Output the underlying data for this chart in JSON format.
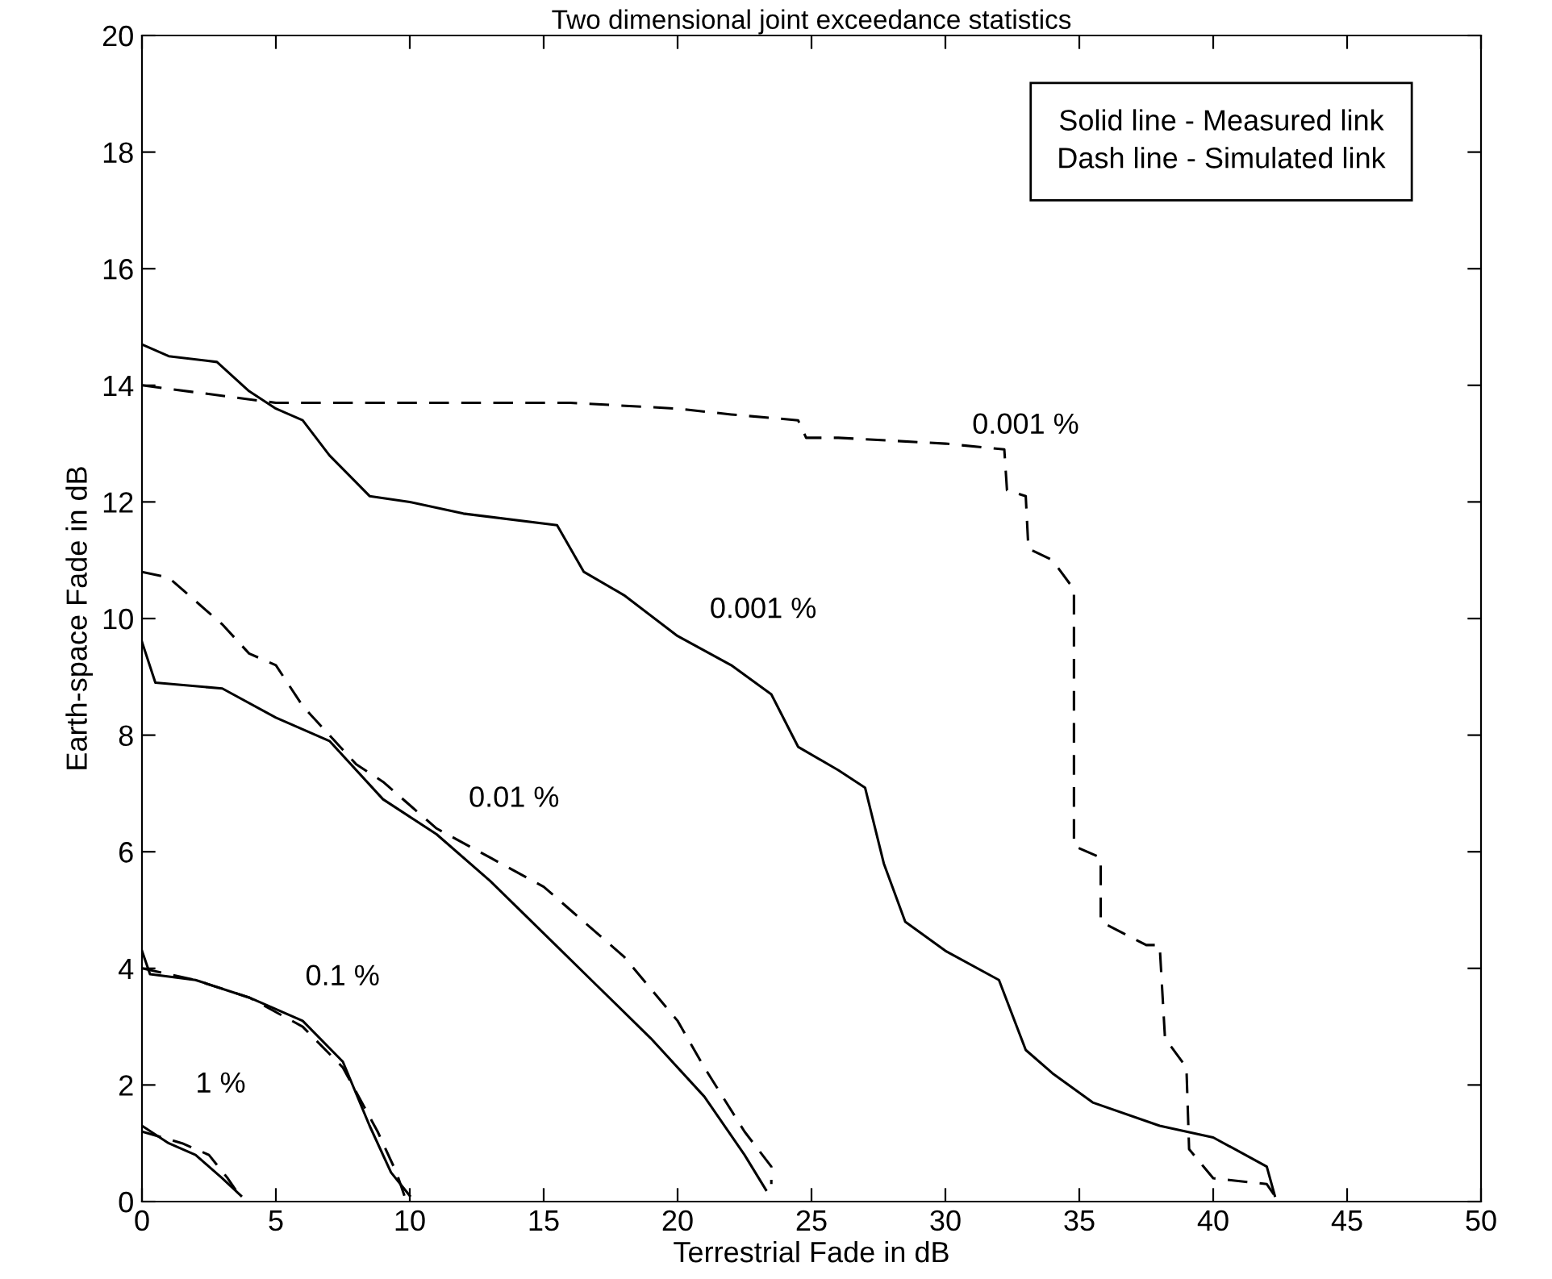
{
  "chart_data": {
    "type": "line",
    "title": "Two dimensional joint exceedance statistics",
    "xlabel": "Terrestrial Fade in dB",
    "ylabel": "Earth-space Fade in dB",
    "xlim": [
      0,
      50
    ],
    "xticks": [
      0,
      5,
      10,
      15,
      20,
      25,
      30,
      35,
      40,
      45,
      50
    ],
    "ylim": [
      0,
      20
    ],
    "yticks": [
      0,
      2,
      4,
      6,
      8,
      10,
      12,
      14,
      16,
      18,
      20
    ],
    "grid": false,
    "legend": false,
    "series": [
      {
        "color": "#000000",
        "line_style": "solid",
        "x": [
          0,
          1,
          2.8,
          4,
          5,
          6,
          7,
          8.5,
          10,
          12,
          15.5,
          16.5,
          18,
          20,
          22,
          23.5,
          24.5,
          26,
          27,
          27.7,
          28.5,
          30,
          32,
          33,
          34,
          35.5,
          38,
          40,
          42,
          42.3
        ],
        "values": [
          14.7,
          14.5,
          14.4,
          13.9,
          13.6,
          13.4,
          12.8,
          12.1,
          12.0,
          11.8,
          11.6,
          10.8,
          10.4,
          9.7,
          9.2,
          8.7,
          7.8,
          7.4,
          7.1,
          5.8,
          4.8,
          4.3,
          3.8,
          2.6,
          2.2,
          1.7,
          1.3,
          1.1,
          0.6,
          0.1
        ]
      },
      {
        "color": "#000000",
        "line_style": "dashed",
        "x": [
          0,
          5,
          16,
          20,
          22,
          24.5,
          24.8,
          26,
          30,
          32.2,
          32.3,
          33,
          33.1,
          34,
          34.8,
          34.8,
          35.8,
          35.8,
          37.5,
          38,
          38.2,
          39,
          39.1,
          40,
          42,
          42.3
        ],
        "values": [
          14.0,
          13.7,
          13.7,
          13.6,
          13.5,
          13.4,
          13.1,
          13.1,
          13.0,
          12.9,
          12.2,
          12.1,
          11.2,
          11.0,
          10.5,
          6.1,
          5.9,
          4.8,
          4.4,
          4.4,
          2.8,
          2.3,
          0.9,
          0.4,
          0.3,
          0.1
        ]
      },
      {
        "color": "#000000",
        "line_style": "solid",
        "x": [
          0,
          0.5,
          3,
          5,
          7,
          9,
          11,
          13,
          15,
          17,
          19,
          21,
          22.5,
          23.3
        ],
        "values": [
          9.6,
          8.9,
          8.8,
          8.3,
          7.9,
          6.9,
          6.3,
          5.5,
          4.6,
          3.7,
          2.8,
          1.8,
          0.8,
          0.2
        ]
      },
      {
        "color": "#000000",
        "line_style": "dashed",
        "x": [
          0,
          1,
          3,
          4,
          5,
          6,
          7,
          8,
          9,
          11,
          13,
          15,
          16,
          18,
          20,
          21,
          22.5,
          23.5,
          23.5
        ],
        "values": [
          10.8,
          10.7,
          9.9,
          9.4,
          9.2,
          8.5,
          8.0,
          7.5,
          7.2,
          6.4,
          5.9,
          5.4,
          5.0,
          4.2,
          3.1,
          2.3,
          1.2,
          0.6,
          0.3
        ]
      },
      {
        "color": "#000000",
        "line_style": "solid",
        "x": [
          0,
          0.3,
          2,
          4,
          6,
          7.5,
          8.5,
          9.3,
          10
        ],
        "values": [
          4.3,
          3.9,
          3.8,
          3.5,
          3.1,
          2.4,
          1.3,
          0.5,
          0.1
        ]
      },
      {
        "color": "#000000",
        "line_style": "dashed",
        "x": [
          0,
          2,
          4,
          6,
          7.5,
          8.8,
          9.5,
          9.8
        ],
        "values": [
          4.0,
          3.8,
          3.5,
          3.0,
          2.3,
          1.2,
          0.5,
          0.1
        ]
      },
      {
        "color": "#000000",
        "line_style": "solid",
        "x": [
          0,
          1,
          2,
          3,
          3.7
        ],
        "values": [
          1.3,
          1.0,
          0.8,
          0.4,
          0.1
        ]
      },
      {
        "color": "#000000",
        "line_style": "dashed",
        "x": [
          0,
          1.5,
          2.5,
          3.2,
          3.5
        ],
        "values": [
          1.2,
          1.0,
          0.8,
          0.4,
          0.2
        ]
      }
    ],
    "annotations": [
      "0.001 %",
      "0.001 %",
      "0.01 %",
      "0.1 %",
      "1 %",
      "Solid line - Measured link",
      "Dash line - Simulated link"
    ]
  }
}
